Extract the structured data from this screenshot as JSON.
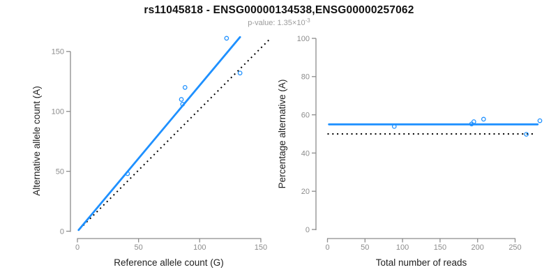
{
  "header": {
    "title": "rs11045818 - ENSG00000134538,ENSG00000257062",
    "pvalue_label": "p-value:",
    "pvalue_base": "1.35×10",
    "pvalue_exponent": "-3"
  },
  "colors": {
    "accent_blue": "#1E90FF",
    "reference_line_black": "#000000",
    "axis_gray": "#8C8C8C",
    "title_color": "#111111",
    "subtitle_gray": "#9B9B9B"
  },
  "chart_data": [
    {
      "type": "scatter",
      "panel": "left",
      "xlabel": "Reference allele count (G)",
      "ylabel": "Alternative allele count (A)",
      "xticks": [
        0,
        50,
        100,
        150
      ],
      "yticks": [
        0,
        50,
        100,
        150
      ],
      "xlim": [
        0,
        157
      ],
      "ylim": [
        0,
        165
      ],
      "grid": false,
      "legend": "none",
      "points": [
        [
          41,
          48
        ],
        [
          86,
          106
        ],
        [
          85,
          110
        ],
        [
          88,
          120
        ],
        [
          122,
          161
        ],
        [
          133,
          132
        ]
      ],
      "lines": [
        {
          "role": "reference-line",
          "style": "dotted",
          "x1": 2,
          "y1": 2,
          "x2": 157,
          "y2": 160
        },
        {
          "role": "fit-line",
          "style": "solid",
          "x1": 1,
          "y1": 1,
          "x2": 133,
          "y2": 162
        }
      ]
    },
    {
      "type": "scatter",
      "panel": "right",
      "xlabel": "Total number of reads",
      "ylabel": "Percentage alternative (A)",
      "xticks": [
        0,
        50,
        100,
        150,
        200,
        250
      ],
      "yticks": [
        0,
        20,
        40,
        60,
        80,
        100
      ],
      "xlim": [
        0,
        283
      ],
      "ylim": [
        0,
        100
      ],
      "grid": false,
      "legend": "none",
      "points": [
        [
          89,
          53.9
        ],
        [
          192,
          55.2
        ],
        [
          195,
          56.4
        ],
        [
          208,
          57.7
        ],
        [
          265,
          49.8
        ],
        [
          283,
          56.9
        ]
      ],
      "lines": [
        {
          "role": "reference-line",
          "style": "dotted",
          "x1": 0,
          "y1": 50,
          "x2": 276,
          "y2": 50
        },
        {
          "role": "fit-line",
          "style": "solid",
          "x1": 2,
          "y1": 55,
          "x2": 280,
          "y2": 55
        }
      ]
    }
  ]
}
